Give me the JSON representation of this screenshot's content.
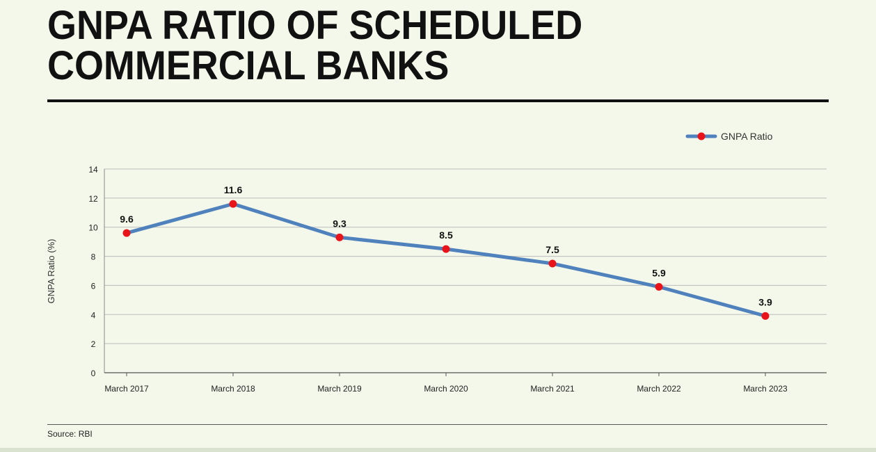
{
  "header": {
    "title_line1": "GNPA RATIO OF SCHEDULED",
    "title_line2": "COMMERCIAL BANKS"
  },
  "footer": {
    "source": "Source: RBI"
  },
  "colors": {
    "line": "#4f81bd",
    "marker": "#e8141a",
    "grid": "#bcbcbc",
    "background": "#f3f8ea"
  },
  "chart_data": {
    "type": "line",
    "title": "GNPA RATIO OF SCHEDULED COMMERCIAL BANKS",
    "xlabel": "",
    "ylabel": "GNPA Ratio (%)",
    "categories": [
      "March 2017",
      "March 2018",
      "March 2019",
      "March 2020",
      "March 2021",
      "March 2022",
      "March 2023"
    ],
    "series": [
      {
        "name": "GNPA Ratio",
        "values": [
          9.6,
          11.6,
          9.3,
          8.5,
          7.5,
          5.9,
          3.9
        ]
      }
    ],
    "ylim": [
      0,
      14
    ],
    "yticks": [
      0,
      2,
      4,
      6,
      8,
      10,
      12,
      14
    ],
    "grid": true,
    "legend": "top-right",
    "data_labels": true
  }
}
